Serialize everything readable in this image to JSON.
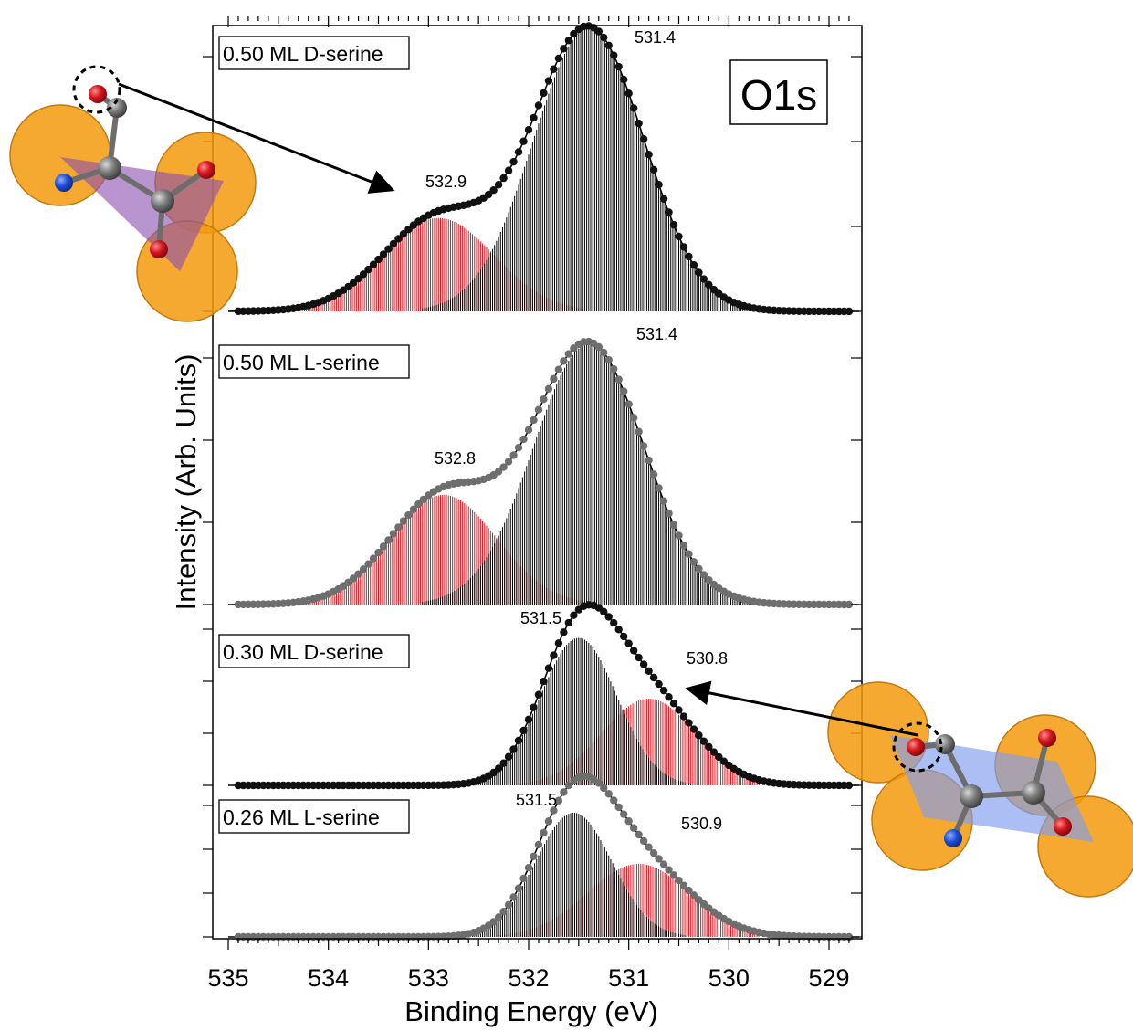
{
  "chart_data": {
    "type": "line",
    "xlabel": "Binding Energy (eV)",
    "ylabel": "Intensity (Arb. Units)",
    "xlim": [
      535,
      528.7
    ],
    "x_reversed": true,
    "x_ticks": [
      "535",
      "534",
      "533",
      "532",
      "531",
      "530",
      "529"
    ],
    "panel_label": "O1s",
    "colors": {
      "main_component": "#000000",
      "minor_component": "#e0141e",
      "data_dark": "#111111",
      "data_gray": "#6e6e6e",
      "oxygen": "#d4151c",
      "nitrogen": "#1f4fd6",
      "carbon": "#7a7a7a",
      "surface_atom": "#f59a0c",
      "triangle_fill": "#8a4fb0",
      "rect_fill": "#7f9df0"
    },
    "panels": [
      {
        "label": "0.50 ML D-serine",
        "marker_color": "#111111",
        "baseline": 0,
        "components": [
          {
            "center": 531.4,
            "height": 1.0,
            "fwhm": 1.3,
            "color": "black"
          },
          {
            "center": 532.9,
            "height": 0.33,
            "fwhm": 1.3,
            "color": "red"
          }
        ],
        "peak_labels": [
          "531.4",
          "532.9"
        ]
      },
      {
        "label": "0.50 ML L-serine",
        "marker_color": "#6e6e6e",
        "baseline": 0,
        "components": [
          {
            "center": 531.4,
            "height": 0.95,
            "fwhm": 1.3,
            "color": "black"
          },
          {
            "center": 532.85,
            "height": 0.4,
            "fwhm": 1.25,
            "color": "red"
          }
        ],
        "peak_labels": [
          "531.4",
          "532.8"
        ]
      },
      {
        "label": "0.30 ML D-serine",
        "marker_color": "#111111",
        "baseline": 0,
        "components": [
          {
            "center": 531.5,
            "height": 0.85,
            "fwhm": 0.9,
            "color": "black"
          },
          {
            "center": 530.8,
            "height": 0.5,
            "fwhm": 1.1,
            "color": "red"
          }
        ],
        "peak_labels": [
          "531.5",
          "530.8"
        ]
      },
      {
        "label": "0.26 ML L-serine",
        "marker_color": "#6e6e6e",
        "baseline": 0,
        "components": [
          {
            "center": 531.55,
            "height": 0.85,
            "fwhm": 0.9,
            "color": "black"
          },
          {
            "center": 530.9,
            "height": 0.5,
            "fwhm": 1.2,
            "color": "red"
          }
        ],
        "peak_labels": [
          "531.5",
          "530.9"
        ]
      }
    ]
  }
}
